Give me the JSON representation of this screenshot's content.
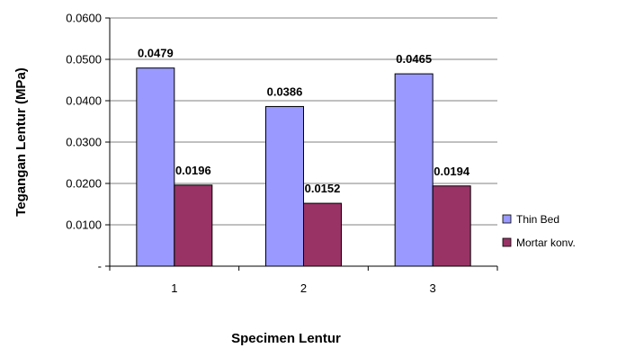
{
  "chart_data": {
    "type": "bar",
    "categories": [
      "1",
      "2",
      "3"
    ],
    "series": [
      {
        "name": "Thin Bed",
        "values": [
          0.0479,
          0.0386,
          0.0465
        ],
        "labels": [
          "0.0479",
          "0.0386",
          "0.0465"
        ],
        "color": "#9999ff"
      },
      {
        "name": "Mortar konv.",
        "values": [
          0.0196,
          0.0152,
          0.0194
        ],
        "labels": [
          "0.0196",
          "0.0152",
          "0.0194"
        ],
        "color": "#993366"
      }
    ],
    "xlabel": "Specimen Lentur",
    "ylabel": "Tegangan Lentur (MPa)",
    "ylim": [
      0,
      0.06
    ],
    "yticks": [
      0,
      0.01,
      0.02,
      0.03,
      0.04,
      0.05,
      0.06
    ],
    "ytick_labels": [
      "-",
      "0.0100",
      "0.0200",
      "0.0300",
      "0.0400",
      "0.0500",
      "0.0600"
    ],
    "grid": true,
    "legend": "right",
    "plot_background": "#ffffff",
    "grid_color": "#808080"
  }
}
